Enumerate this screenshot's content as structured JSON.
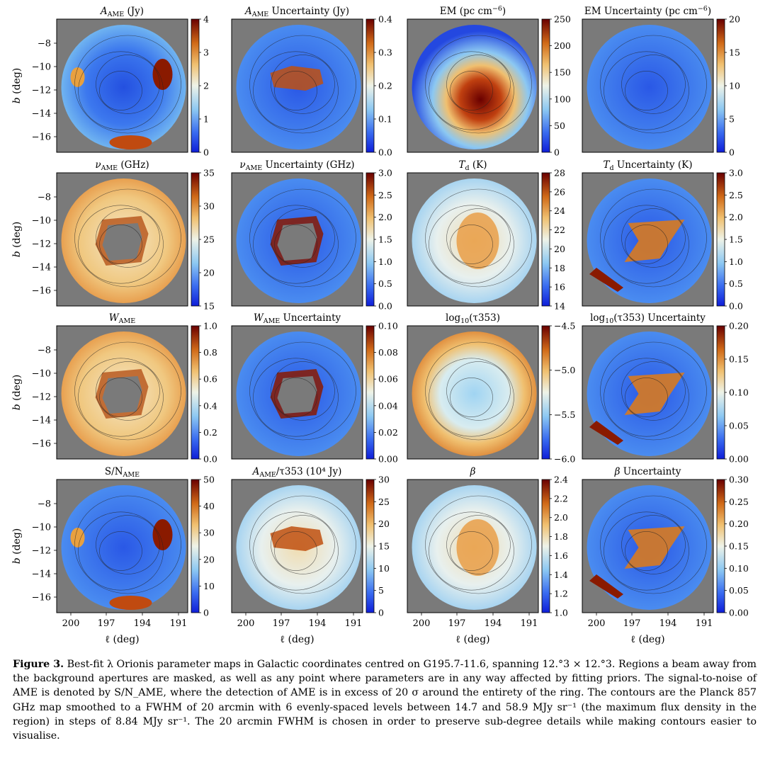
{
  "figure": {
    "panels": [
      {
        "title": "A_AME (Jy)",
        "title_main": "A",
        "title_sub": "AME",
        "title_rest": " (Jy)",
        "ticks": [
          "0",
          "1",
          "2",
          "3",
          "4"
        ],
        "cmap_label_count": 5
      },
      {
        "title": "A_AME Uncertainty (Jy)",
        "title_main": "A",
        "title_sub": "AME",
        "title_rest": " Uncertainty (Jy)",
        "ticks": [
          "0.0",
          "0.1",
          "0.2",
          "0.3",
          "0.4"
        ]
      },
      {
        "title": "EM (pc cm^-6)",
        "title_main": "EM (pc cm",
        "title_sup": "−6",
        "title_rest": ")",
        "ticks": [
          "0",
          "50",
          "100",
          "150",
          "200",
          "250"
        ]
      },
      {
        "title": "EM Uncertainty (pc cm^-6)",
        "title_main": "EM Uncertainty (pc cm",
        "title_sup": "−6",
        "title_rest": ")",
        "ticks": [
          "0",
          "5",
          "10",
          "15",
          "20"
        ]
      },
      {
        "title": "ν_AME (GHz)",
        "title_main": "ν",
        "title_sub": "AME",
        "title_rest": " (GHz)",
        "ticks": [
          "15",
          "20",
          "25",
          "30",
          "35"
        ]
      },
      {
        "title": "ν_AME Uncertainty (GHz)",
        "title_main": "ν",
        "title_sub": "AME",
        "title_rest": " Uncertainty (GHz)",
        "ticks": [
          "0.0",
          "0.5",
          "1.0",
          "1.5",
          "2.0",
          "2.5",
          "3.0"
        ]
      },
      {
        "title": "T_d (K)",
        "title_main": "T",
        "title_sub": "d",
        "title_rest": " (K)",
        "ticks": [
          "14",
          "16",
          "18",
          "20",
          "22",
          "24",
          "26",
          "28"
        ]
      },
      {
        "title": "T_d Uncertainty (K)",
        "title_main": "T",
        "title_sub": "d",
        "title_rest": " Uncertainty (K)",
        "ticks": [
          "0.0",
          "0.5",
          "1.0",
          "1.5",
          "2.0",
          "2.5",
          "3.0"
        ]
      },
      {
        "title": "W_AME",
        "title_main": "W",
        "title_sub": "AME",
        "title_rest": "",
        "ticks": [
          "0.0",
          "0.2",
          "0.4",
          "0.6",
          "0.8",
          "1.0"
        ]
      },
      {
        "title": "W_AME Uncertainty",
        "title_main": "W",
        "title_sub": "AME",
        "title_rest": " Uncertainty",
        "ticks": [
          "0.00",
          "0.02",
          "0.04",
          "0.06",
          "0.08",
          "0.10"
        ]
      },
      {
        "title": "log10(τ353)",
        "title_main": "log",
        "title_sub": "10",
        "title_rest": "(τ353)",
        "ticks": [
          "−6.0",
          "−5.5",
          "−5.0",
          "−4.5"
        ],
        "tick_fracs": [
          0,
          0.333,
          0.667,
          1.0
        ]
      },
      {
        "title": "log10(τ353) Uncertainty",
        "title_main": "log",
        "title_sub": "10",
        "title_rest": "(τ353) Uncertainty",
        "ticks": [
          "0.00",
          "0.05",
          "0.10",
          "0.15",
          "0.20"
        ]
      },
      {
        "title": "S/N_AME",
        "title_main": "S/N",
        "title_sub": "AME",
        "title_rest": "",
        "ticks": [
          "0",
          "10",
          "20",
          "30",
          "40",
          "50"
        ]
      },
      {
        "title": "A_AME/τ353 (10^4 Jy)",
        "title_main": "A",
        "title_sub": "AME",
        "title_rest": "/τ353 (10⁴ Jy)",
        "ticks": [
          "0",
          "5",
          "10",
          "15",
          "20",
          "25",
          "30"
        ]
      },
      {
        "title": "β",
        "title_main": "β",
        "title_sub": "",
        "title_rest": "",
        "ticks": [
          "1.0",
          "1.2",
          "1.4",
          "1.6",
          "1.8",
          "2.0",
          "2.2",
          "2.4"
        ]
      },
      {
        "title": "β Uncertainty",
        "title_main": "β",
        "title_sub": "",
        "title_rest": " Uncertainty",
        "ticks": [
          "0.00",
          "0.05",
          "0.10",
          "0.15",
          "0.20",
          "0.25",
          "0.30"
        ]
      }
    ],
    "y_axis_label": "b (deg)",
    "y_ticks": [
      "−8",
      "−10",
      "−12",
      "−14",
      "−16"
    ],
    "x_axis_label": "ℓ (deg)",
    "x_ticks": [
      "200",
      "197",
      "194",
      "191"
    ],
    "colors": {
      "mask": "#7a7a7a",
      "cmap_low": "#1e2fd6",
      "cmap_mid": "#d8ecf2",
      "cmap_high": "#6b0000"
    }
  },
  "caption": {
    "label": "Figure 3.",
    "text": " Best-fit λ Orionis parameter maps in Galactic coordinates centred on G195.7-11.6, spanning 12.°3 × 12.°3. Regions a beam away from the background apertures are masked, as well as any point where parameters are in any way affected by fitting priors. The signal-to-noise of AME is denoted by S/N_AME, where the detection of AME is in excess of 20 σ around the entirety of the ring. The contours are the Planck 857 GHz map smoothed to a FWHM of 20 arcmin with 6 evenly-spaced levels between 14.7 and 58.9 MJy sr⁻¹ (the maximum flux density in the region) in steps of 8.84 MJy sr⁻¹. The 20 arcmin FWHM is chosen in order to preserve sub-degree details while making contours easier to visualise."
  }
}
